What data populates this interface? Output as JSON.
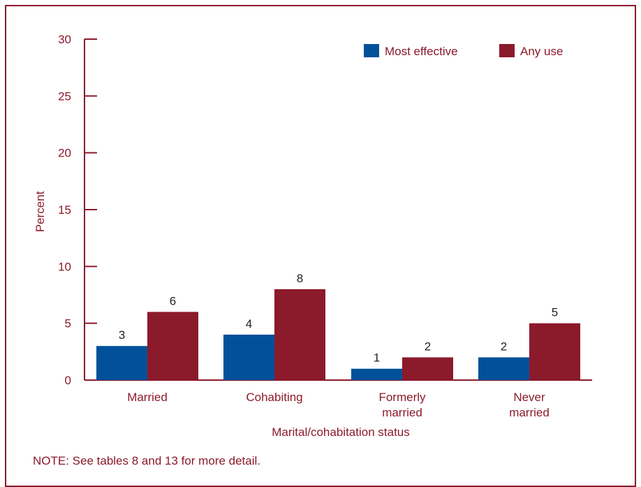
{
  "colors": {
    "frame": "#8B1A2B",
    "axis": "#8B1A2B",
    "text": "#8B1A2B",
    "value_label": "#222222",
    "most_effective": "#00519A",
    "any_use": "#8B1A2B"
  },
  "note": "NOTE: See tables 8 and 13 for more detail.",
  "chart_data": {
    "type": "bar",
    "categories": [
      "Married",
      "Cohabiting",
      "Formerly married",
      "Never married"
    ],
    "category_lines": [
      [
        "Married"
      ],
      [
        "Cohabiting"
      ],
      [
        "Formerly",
        "married"
      ],
      [
        "Never",
        "married"
      ]
    ],
    "series": [
      {
        "name": "Most effective",
        "values": [
          3,
          4,
          1,
          2
        ]
      },
      {
        "name": "Any use",
        "values": [
          6,
          8,
          2,
          5
        ]
      }
    ],
    "xlabel": "Marital/cohabitation status",
    "ylabel": "Percent",
    "ylim": [
      0,
      30
    ],
    "yticks": [
      "0",
      "5",
      "10",
      "15",
      "20",
      "25",
      "30"
    ],
    "legend": "top-right",
    "grid": false
  }
}
